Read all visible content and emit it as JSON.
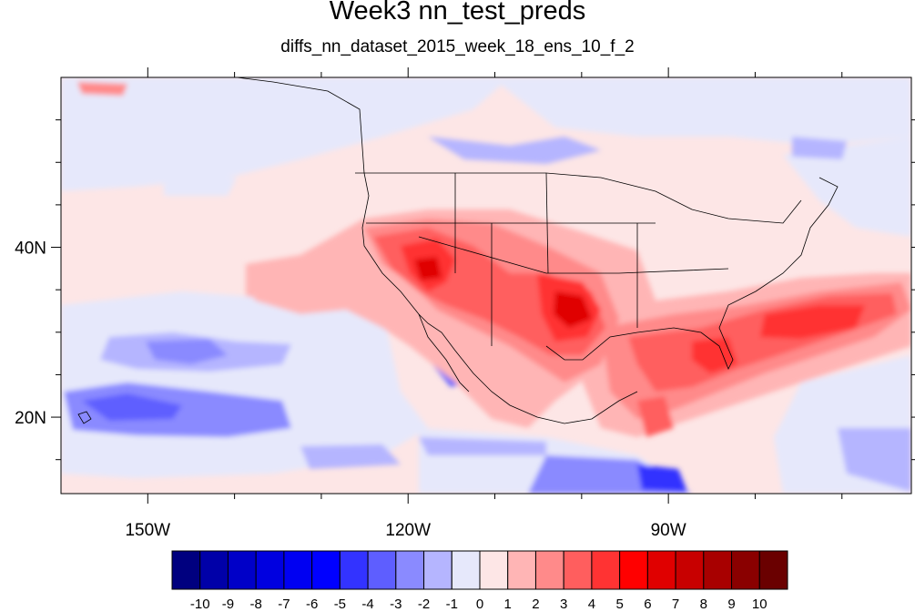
{
  "title": "Week3 nn_test_preds",
  "subtitle": "diffs_nn_dataset_2015_week_18_ens_10_f_2",
  "map": {
    "lon_range": [
      -160,
      -62
    ],
    "lat_range": [
      11,
      60
    ],
    "x_ticks": [
      {
        "label": "150W",
        "lon": -150
      },
      {
        "label": "120W",
        "lon": -120
      },
      {
        "label": "90W",
        "lon": -90
      }
    ],
    "y_ticks": [
      {
        "label": "40N",
        "lat": 40
      },
      {
        "label": "20N",
        "lat": 20
      }
    ]
  },
  "colorbar": {
    "levels": [
      "-10",
      "-9",
      "-8",
      "-7",
      "-6",
      "-5",
      "-4",
      "-3",
      "-2",
      "-1",
      "0",
      "1",
      "2",
      "3",
      "4",
      "5",
      "6",
      "7",
      "8",
      "9",
      "10"
    ],
    "colors": [
      "#00007f",
      "#0000a8",
      "#0000c8",
      "#0000e0",
      "#0000f2",
      "#0000ff",
      "#3333ff",
      "#5e5eff",
      "#8a8aff",
      "#b5b5ff",
      "#e6e8fb",
      "#fde6e6",
      "#ffb5b5",
      "#ff8a8a",
      "#ff5e5e",
      "#ff3333",
      "#ff0000",
      "#e00000",
      "#c80000",
      "#a80000",
      "#8a0000",
      "#6a0000"
    ]
  }
}
